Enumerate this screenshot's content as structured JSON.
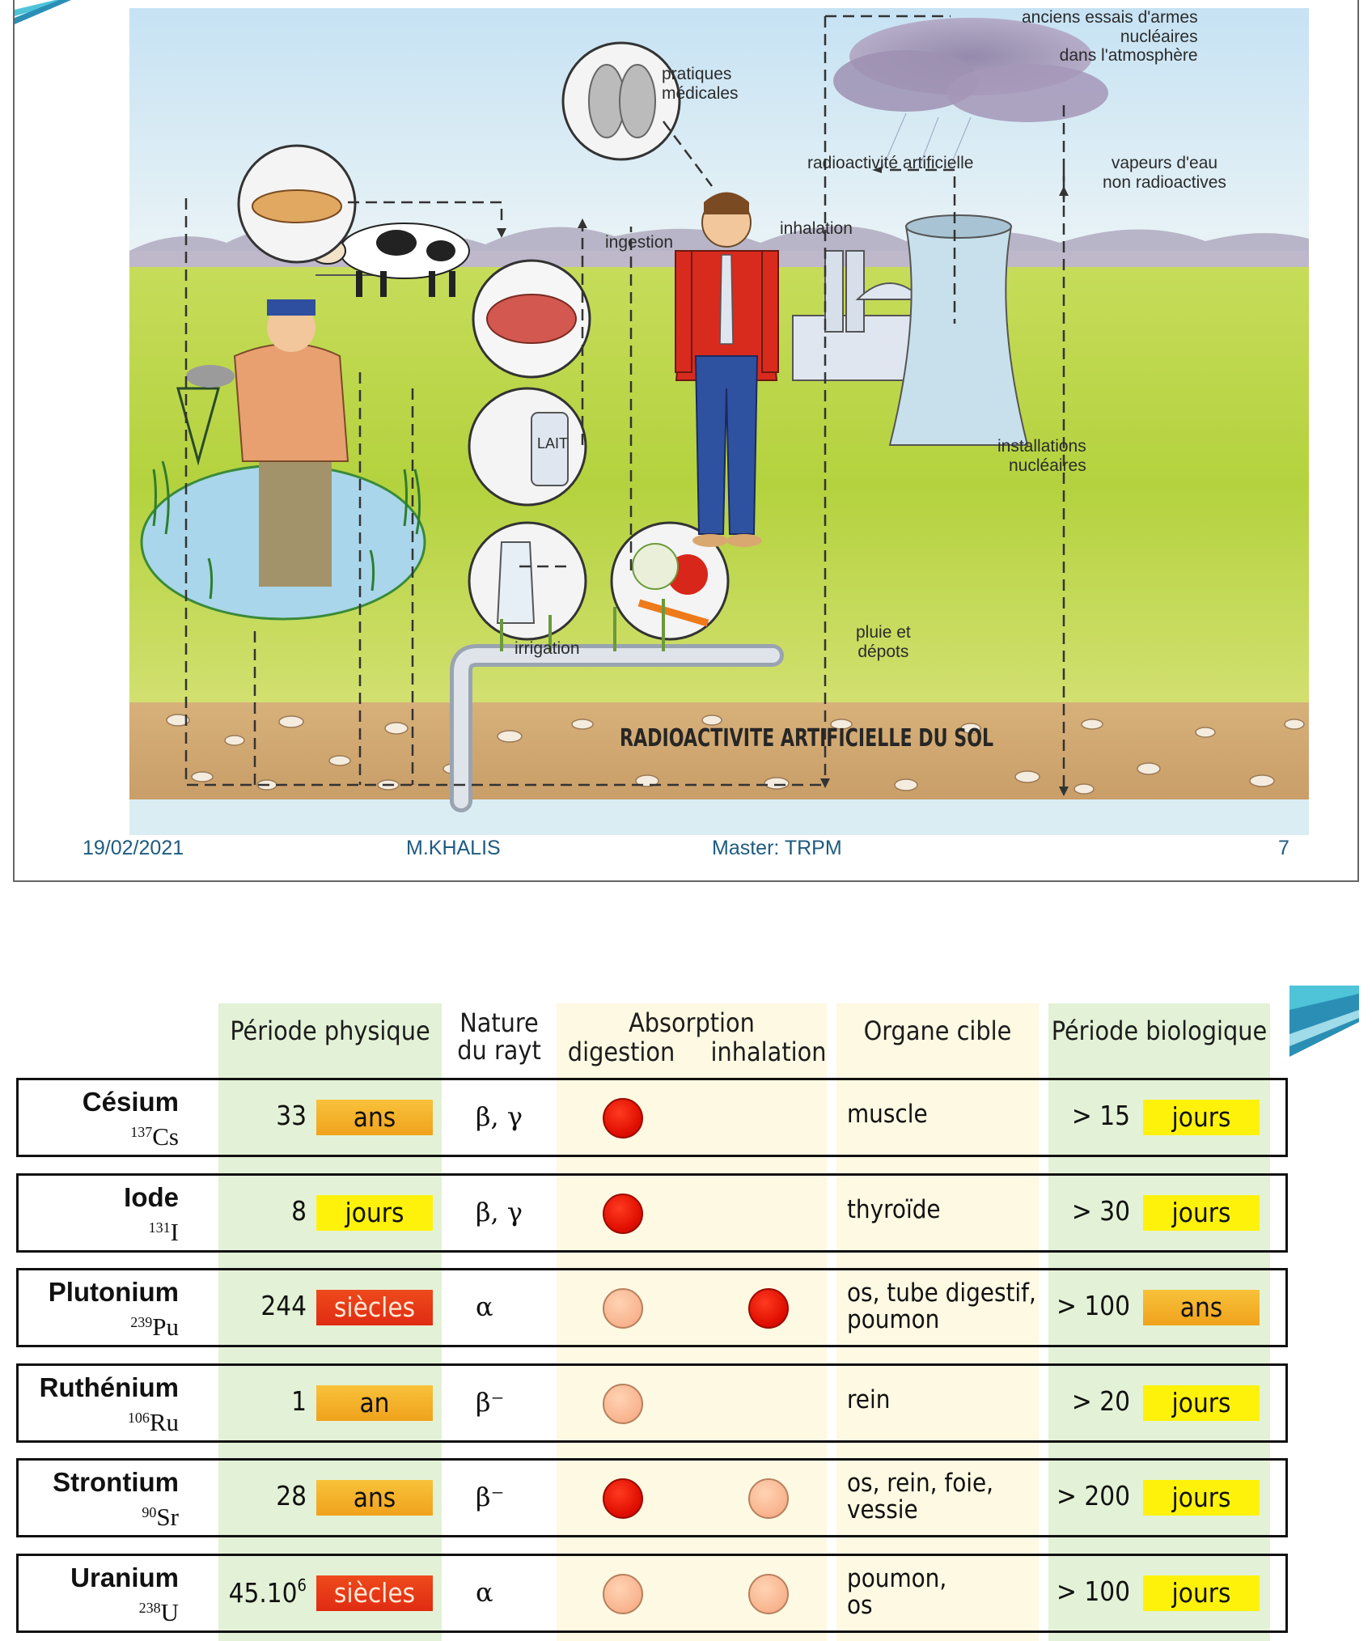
{
  "slide1": {
    "labels": {
      "nuclear_tests": "anciens essais d'armes\nnucléaires\ndans l'atmosphère",
      "medical": "pratiques\nmédicales",
      "artificial": "radioactivité artificielle",
      "steam": "vapeurs d'eau\nnon radioactives",
      "inhalation": "inhalation",
      "ingestion": "ingestion",
      "installations": "installations\nnucléaires",
      "irrigation": "irrigation",
      "rain": "pluie  et\ndépots",
      "soil": "RADIOACTIVITE ARTIFICIELLE DU SOL",
      "lait": "LAIT"
    },
    "footer": {
      "date": "19/02/2021",
      "author": "M.KHALIS",
      "course": "Master: TRPM",
      "page": "7"
    }
  },
  "slide2": {
    "headers": {
      "periode_physique": "Période physique",
      "nature": "Nature\ndu rayt",
      "absorption": "Absorption",
      "digestion": "digestion",
      "inhalation": "inhalation",
      "organe": "Organe cible",
      "periode_bio": "Période biologique"
    },
    "rows": [
      {
        "name": "Césium",
        "mass": "137",
        "sym": "Cs",
        "phys_num": "33",
        "phys_unit": "ans",
        "phys_kind": "ans",
        "ray": "β, γ",
        "dig": "strong",
        "inh": "",
        "organ": "muscle",
        "bio_num": "> 15",
        "bio_unit": "jours",
        "bio_kind": "jours"
      },
      {
        "name": "Iode",
        "mass": "131",
        "sym": "I",
        "phys_num": "8",
        "phys_unit": "jours",
        "phys_kind": "jours",
        "ray": "β, γ",
        "dig": "strong",
        "inh": "",
        "organ": "thyroïde",
        "bio_num": "> 30",
        "bio_unit": "jours",
        "bio_kind": "jours"
      },
      {
        "name": "Plutonium",
        "mass": "239",
        "sym": "Pu",
        "phys_num": "244",
        "phys_unit": "siècles",
        "phys_kind": "siecles",
        "ray": "α",
        "dig": "weak",
        "inh": "strong",
        "organ": "os, tube digestif,\npoumon",
        "bio_num": "> 100",
        "bio_unit": "ans",
        "bio_kind": "ans"
      },
      {
        "name": "Ruthénium",
        "mass": "106",
        "sym": "Ru",
        "phys_num": "1",
        "phys_unit": "an",
        "phys_kind": "ans",
        "ray": "β⁻",
        "dig": "weak",
        "inh": "",
        "organ": "rein",
        "bio_num": "> 20",
        "bio_unit": "jours",
        "bio_kind": "jours"
      },
      {
        "name": "Strontium",
        "mass": "90",
        "sym": "Sr",
        "phys_num": "28",
        "phys_unit": "ans",
        "phys_kind": "ans",
        "ray": "β⁻",
        "dig": "strong",
        "inh": "weak",
        "organ": "os, rein, foie,\nvessie",
        "bio_num": "> 200",
        "bio_unit": "jours",
        "bio_kind": "jours"
      },
      {
        "name": "Uranium",
        "mass": "238",
        "sym": "U",
        "phys_num": "45.10",
        "phys_exp": "6",
        "phys_unit": "siècles",
        "phys_kind": "siecles",
        "ray": "α",
        "dig": "weak",
        "inh": "weak",
        "organ": "poumon,\nos",
        "bio_num": "> 100",
        "bio_unit": "jours",
        "bio_kind": "jours"
      }
    ]
  }
}
